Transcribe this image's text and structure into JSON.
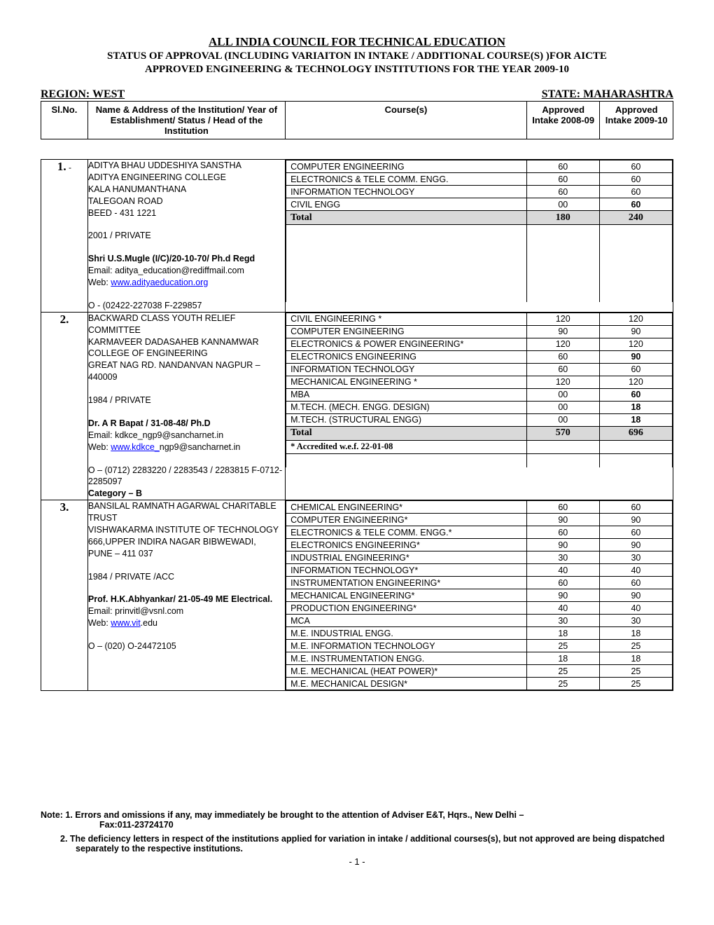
{
  "title1": "ALL INDIA COUNCIL FOR TECHNICAL EDUCATION",
  "title2": "STATUS OF APPROVAL (INCLUDING VARIAITON IN INTAKE / ADDITIONAL COURSE(S) )FOR AICTE",
  "title3": "APPROVED ENGINEERING & TECHNOLOGY INSTITUTIONS FOR THE YEAR 2009-10",
  "region": "REGION: WEST",
  "state": "STATE: MAHARASHTRA",
  "headers": {
    "sl": "Sl.No.",
    "inst": "Name & Address of the Institution/ Year of Establishment/ Status / Head of the Institution",
    "course": "Course(s)",
    "y2008": "Approved Intake 2008-09",
    "y2009": "Approved Intake 2009-10"
  },
  "rows": [
    {
      "sl": "1.",
      "dash": "-",
      "inst": {
        "name_lines": [
          "ADITYA BHAU UDDESHIYA SANSTHA",
          "ADITYA ENGINEERING COLLEGE",
          "KALA HANUMANTHANA",
          "TALEGOAN ROAD",
          "BEED - 431 1221"
        ],
        "year_status": "2001 / PRIVATE",
        "head": "Shri  U.S.Mugle (I/C)/20-10-70/ Ph.d Regd",
        "email_label": "Email: ",
        "email": "aditya_education@rediffmail.com",
        "web_label": "Web: ",
        "web_text": "www.adityaeducation.org",
        "phone": "O - (02422-227038 F-229857"
      },
      "courses": [
        {
          "c": "COMPUTER ENGINEERING",
          "a": "60",
          "b": "60"
        },
        {
          "c": "ELECTRONICS & TELE COMM. ENGG.",
          "a": "60",
          "b": "60"
        },
        {
          "c": "INFORMATION TECHNOLOGY",
          "a": "60",
          "b": "60"
        },
        {
          "c": "CIVIL ENGG",
          "a": "00",
          "b": "60",
          "bb": true
        }
      ],
      "total": {
        "label": "Total",
        "a": "180",
        "b": "240"
      }
    },
    {
      "sl": "2.",
      "inst": {
        "name_lines": [
          "BACKWARD CLASS YOUTH RELIEF COMMITTEE",
          "KARMAVEER DADASAHEB KANNAMWAR COLLEGE OF ENGINEERING",
          "GREAT NAG RD. NANDANVAN NAGPUR – 440009"
        ],
        "year_status": "1984 / PRIVATE",
        "head": "Dr. A R Bapat / 31-08-48/ Ph.D",
        "email_label": "Email: ",
        "email": "kdkce_ngp9@sancharnet.in",
        "web_label": "Web: ",
        "web_link": "www.kdkce_",
        "web_rest": "ngp9@sancharnet.in",
        "phone": "O – (0712) 2283220 / 2283543 / 2283815 F-0712-2285097",
        "category": "Category – B"
      },
      "courses": [
        {
          "c": "CIVIL ENGINEERING *",
          "a": "120",
          "b": "120"
        },
        {
          "c": "COMPUTER ENGINEERING",
          "a": "90",
          "b": "90"
        },
        {
          "c": "ELECTRONICS & POWER ENGINEERING*",
          "a": "120",
          "b": "120"
        },
        {
          "c": "ELECTRONICS ENGINEERING",
          "a": "60",
          "b": "90",
          "bb": true
        },
        {
          "c": "INFORMATION TECHNOLOGY",
          "a": "60",
          "b": "60"
        },
        {
          "c": "MECHANICAL ENGINEERING *",
          "a": "120",
          "b": "120"
        },
        {
          "c": "MBA",
          "a": "00",
          "b": "60",
          "bb": true
        },
        {
          "c": "M.TECH. (MECH. ENGG. DESIGN)",
          "a": "00",
          "b": "18",
          "bb": true
        },
        {
          "c": "M.TECH. (STRUCTURAL ENGG)",
          "a": "00",
          "b": "18",
          "bb": true
        }
      ],
      "total": {
        "label": "Total",
        "a": "570",
        "b": "696"
      },
      "accredited": "* Accredited w.e.f. 22-01-08"
    },
    {
      "sl": "3.",
      "inst": {
        "name_lines": [
          "BANSILAL RAMNATH AGARWAL CHARITABLE TRUST",
          "VISHWAKARMA INSTITUTE OF TECHNOLOGY",
          "666,UPPER INDIRA NAGAR BIBWEWADI,",
          "PUNE – 411 037"
        ],
        "year_status": "1984 / PRIVATE /ACC",
        "head": "Prof. H.K.Abhyankar/ 21-05-49 ME Electrical.",
        "email_label": "Email: ",
        "email": "prinvitl@vsnl.com",
        "web_label": "Web: ",
        "web_link": "www.vit",
        "web_rest": ".edu",
        "phone": "O – (020) O-24472105"
      },
      "courses": [
        {
          "c": "CHEMICAL ENGINEERING*",
          "a": "60",
          "b": "60"
        },
        {
          "c": "COMPUTER ENGINEERING*",
          "a": "90",
          "b": "90"
        },
        {
          "c": "ELECTRONICS & TELE COMM. ENGG.*",
          "a": "60",
          "b": "60"
        },
        {
          "c": "ELECTRONICS ENGINEERING*",
          "a": "90",
          "b": "90"
        },
        {
          "c": "INDUSTRIAL ENGINEERING*",
          "a": "30",
          "b": "30"
        },
        {
          "c": "INFORMATION TECHNOLOGY*",
          "a": "40",
          "b": "40"
        },
        {
          "c": "INSTRUMENTATION ENGINEERING*",
          "a": "60",
          "b": "60"
        },
        {
          "c": "MECHANICAL ENGINEERING*",
          "a": "90",
          "b": "90"
        },
        {
          "c": "PRODUCTION ENGINEERING*",
          "a": "40",
          "b": "40"
        },
        {
          "c": "MCA",
          "a": "30",
          "b": "30"
        },
        {
          "c": "M.E. INDUSTRIAL ENGG.",
          "a": "18",
          "b": "18"
        },
        {
          "c": "M.E. INFORMATION TECHNOLOGY",
          "a": "25",
          "b": "25"
        },
        {
          "c": "M.E. INSTRUMENTATION ENGG.",
          "a": "18",
          "b": "18"
        },
        {
          "c": "M.E. MECHANICAL (HEAT POWER)*",
          "a": "25",
          "b": "25"
        },
        {
          "c": "M.E. MECHANICAL DESIGN*",
          "a": "25",
          "b": "25"
        }
      ]
    }
  ],
  "footer": {
    "note1a": "Note:  1. Errors and omissions if any, may immediately be brought to the attention of Adviser E&T, Hqrs., New Delhi –",
    "note1b": "Fax:011-23724170",
    "note2": "2. The deficiency letters in respect of the institutions applied for variation in intake / additional courses(s), but not approved are being dispatched separately to the respective institutions."
  },
  "pagenum": "- 1 -",
  "colors": {
    "total_bg": "#d9d9d9",
    "link": "#0000ff"
  }
}
